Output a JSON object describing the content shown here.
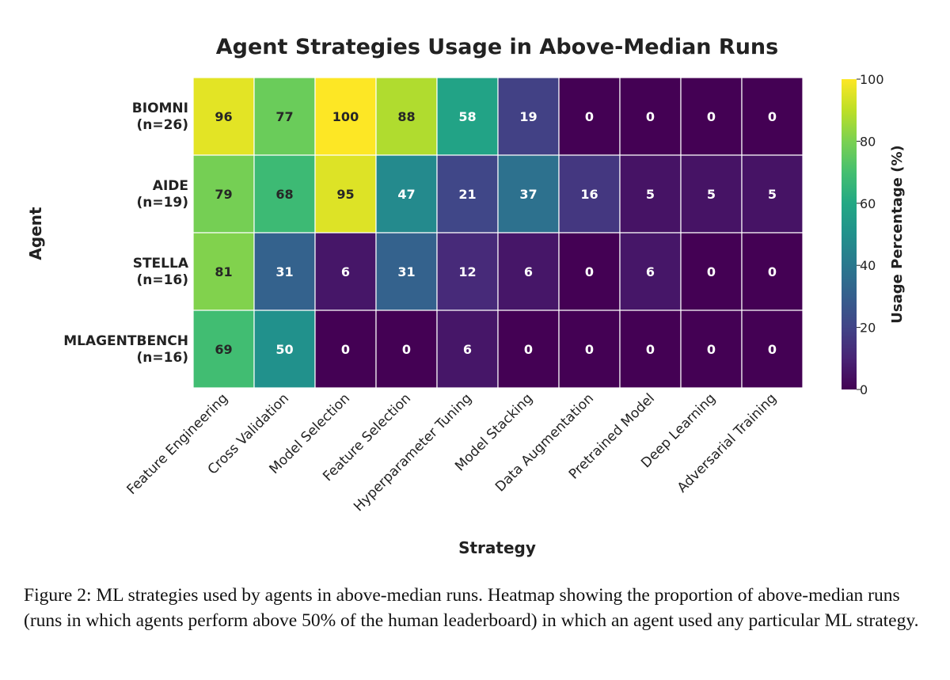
{
  "chart_data": {
    "type": "heatmap",
    "title": "Agent Strategies Usage in Above-Median Runs",
    "xlabel": "Strategy",
    "ylabel": "Agent",
    "rows": [
      {
        "name": "BIOMNI",
        "n": "(n=26)"
      },
      {
        "name": "AIDE",
        "n": "(n=19)"
      },
      {
        "name": "STELLA",
        "n": "(n=16)"
      },
      {
        "name": "MLAGENTBENCH",
        "n": "(n=16)"
      }
    ],
    "columns": [
      "Feature Engineering",
      "Cross Validation",
      "Model Selection",
      "Feature Selection",
      "Hyperparameter Tuning",
      "Model Stacking",
      "Data Augmentation",
      "Pretrained Model",
      "Deep Learning",
      "Adversarial Training"
    ],
    "values": [
      [
        96,
        77,
        100,
        88,
        58,
        19,
        0,
        0,
        0,
        0
      ],
      [
        79,
        68,
        95,
        47,
        21,
        37,
        16,
        5,
        5,
        5
      ],
      [
        81,
        31,
        6,
        31,
        12,
        6,
        0,
        6,
        0,
        0
      ],
      [
        69,
        50,
        0,
        0,
        6,
        0,
        0,
        0,
        0,
        0
      ]
    ],
    "colorbar": {
      "label": "Usage Percentage (%)",
      "range": [
        0,
        100
      ],
      "ticks": [
        0,
        20,
        40,
        60,
        80,
        100
      ]
    },
    "colormap": "viridis"
  },
  "caption": "Figure 2: ML strategies used by agents in above-median runs. Heatmap showing the proportion of above-median runs (runs in which agents perform above 50% of the human leaderboard) in which an agent used any particular ML strategy."
}
